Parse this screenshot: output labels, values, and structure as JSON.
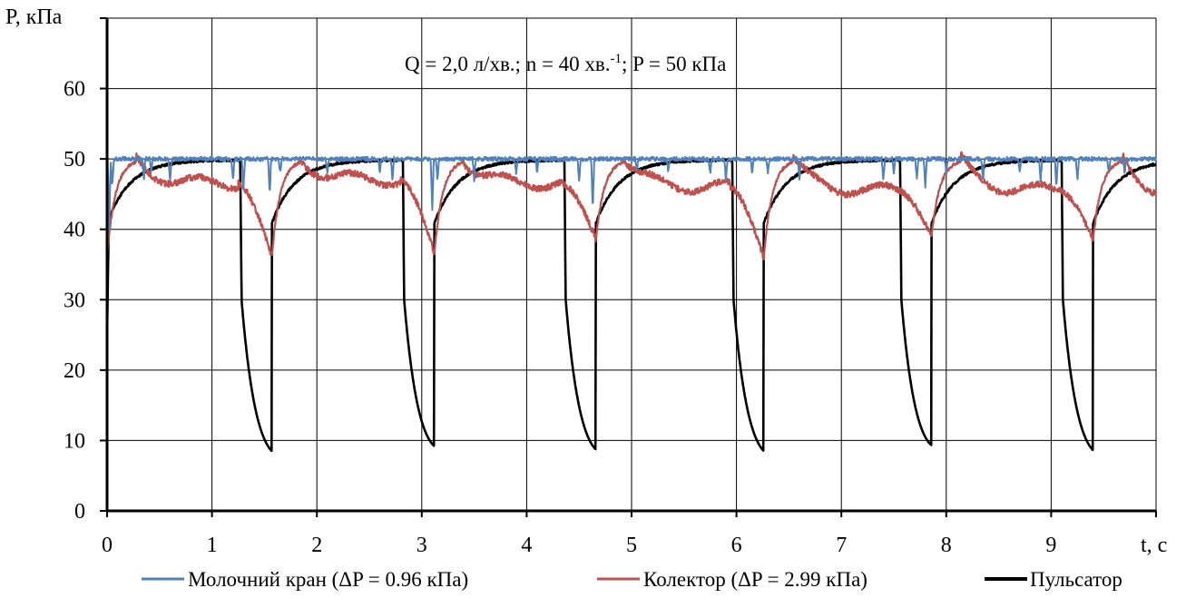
{
  "chart_data": {
    "type": "line",
    "title": "",
    "annotation": {
      "prefix": "Q = 2,0 л/хв.; n = 40 хв.",
      "superscript": "-1",
      "suffix": "; P = 50 кПа"
    },
    "ylabel": "P, кПа",
    "xlabel": "t, с",
    "xlim": [
      0,
      10
    ],
    "ylim": [
      0,
      70
    ],
    "grid": true,
    "legend_position": "bottom",
    "x_ticks": [
      "0",
      "1",
      "2",
      "3",
      "4",
      "5",
      "6",
      "7",
      "8",
      "9"
    ],
    "y_ticks": [
      "0",
      "10",
      "20",
      "30",
      "40",
      "50",
      "60"
    ],
    "cycle_starts": [
      0.0,
      1.57,
      3.12,
      4.66,
      6.26,
      7.86,
      9.4
    ],
    "series": [
      {
        "name": "Молочний кран (ΔP = 0.96 кПа)",
        "color": "#4f81bd",
        "baseline": 50.0,
        "dip_times": [
          0.02,
          0.05,
          0.35,
          0.42,
          0.6,
          1.2,
          1.3,
          1.55,
          1.65,
          2.1,
          2.6,
          2.72,
          3.1,
          3.15,
          3.5,
          3.9,
          4.1,
          4.5,
          4.63,
          5.05,
          5.35,
          5.75,
          5.9,
          6.15,
          6.3,
          6.6,
          7.4,
          7.5,
          7.72,
          7.8,
          8.0,
          8.35,
          8.7,
          8.9,
          9.05,
          9.25,
          9.55,
          9.7
        ],
        "dip_depths": [
          10,
          4,
          3,
          2,
          3,
          3,
          4,
          5,
          2,
          2,
          2,
          3,
          7,
          3,
          3,
          2,
          2,
          3,
          7,
          2,
          2,
          2,
          3,
          2,
          2,
          3,
          3,
          2,
          3,
          4,
          2,
          3,
          2,
          3,
          4,
          3,
          2,
          2
        ]
      },
      {
        "name": "Колектор (ΔP = 2.99 кПа)",
        "color": "#c0504d",
        "baseline": 50.0,
        "minima": [
          36.2,
          36.0,
          36.5,
          38.5,
          35.8,
          39.0,
          38.5,
          46.5
        ],
        "plateau": [
          46.5,
          47.0,
          46.5,
          46.0,
          45.5,
          45.5,
          45.0
        ]
      },
      {
        "name": "Пульсатор",
        "color": "#000000",
        "baseline": 50.0,
        "drop_start_level": 49.5,
        "minima": [
          8.5,
          9.2,
          8.7,
          8.5,
          9.3,
          8.6
        ],
        "recover_value": 41.0
      }
    ]
  }
}
